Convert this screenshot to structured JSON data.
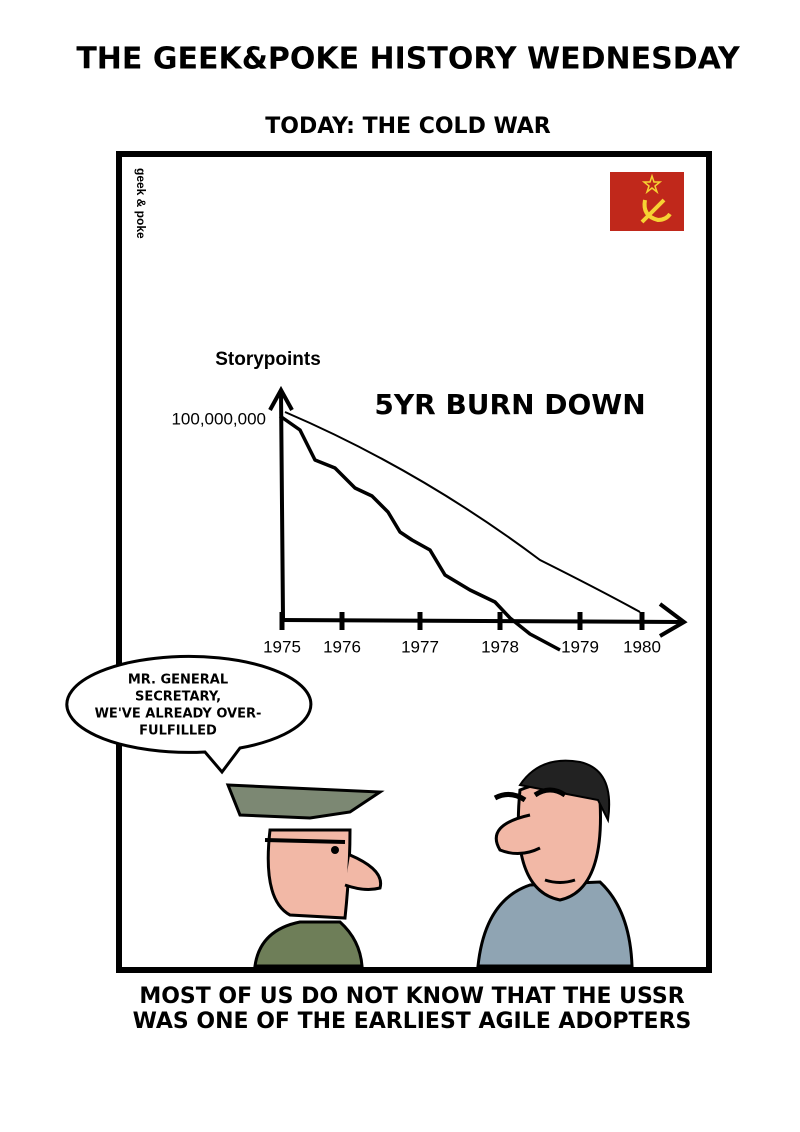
{
  "header": {
    "title": "THE GEEK&POKE HISTORY WEDNESDAY",
    "subtitle": "TODAY: THE COLD WAR"
  },
  "panel": {
    "watermark": "geek & poke",
    "chart": {
      "y_label": "Storypoints",
      "title": "5YR BURN DOWN",
      "y_tick": "100,000,000",
      "x_ticks": [
        1975,
        1976,
        1977,
        1978,
        1979,
        1980
      ]
    },
    "speech_bubble": {
      "lines": [
        "MR. GENERAL",
        "SECRETARY,",
        "WE'VE ALREADY OVER-",
        "FULFILLED"
      ]
    }
  },
  "caption": {
    "lines": [
      "MOST OF US DO NOT KNOW THAT THE USSR",
      "WAS ONE OF THE EARLIEST AGILE ADOPTERS"
    ]
  }
}
